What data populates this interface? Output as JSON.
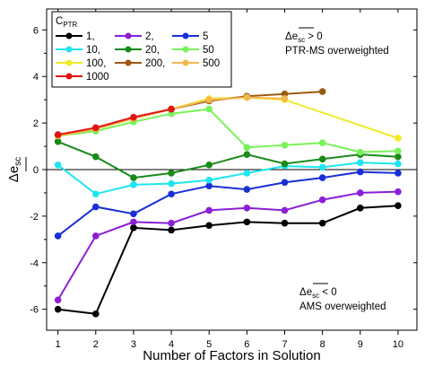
{
  "chart_data": {
    "type": "line",
    "xlabel": "Number of Factors in Solution",
    "ylabel": "Δ e_sc",
    "ylabel_symbol": "Δ",
    "ylabel_var": "e",
    "ylabel_sub": "sc",
    "xlim": [
      0.7,
      10.5
    ],
    "ylim": [
      -6.9,
      6.9
    ],
    "xticks": [
      1,
      2,
      3,
      4,
      5,
      6,
      7,
      8,
      9,
      10
    ],
    "yticks": [
      -6,
      -4,
      -2,
      0,
      2,
      4,
      6
    ],
    "zero_line": true,
    "legend": {
      "title": "C",
      "title_sub": "PTR",
      "placement": "top-left"
    },
    "series": [
      {
        "name": "1,",
        "color": "#000000",
        "x": [
          1,
          2,
          3,
          4,
          5,
          6,
          7,
          8,
          9,
          10
        ],
        "y": [
          -6.0,
          -6.2,
          -2.5,
          -2.6,
          -2.4,
          -2.25,
          -2.3,
          -2.3,
          -1.65,
          -1.55
        ]
      },
      {
        "name": "2,",
        "color": "#8a1fd6",
        "x": [
          1,
          2,
          3,
          4,
          5,
          6,
          7,
          8,
          9,
          10
        ],
        "y": [
          -5.6,
          -2.85,
          -2.25,
          -2.3,
          -1.75,
          -1.65,
          -1.75,
          -1.3,
          -1.0,
          -0.95
        ]
      },
      {
        "name": "5",
        "color": "#1a2fd6",
        "x": [
          1,
          2,
          3,
          4,
          5,
          6,
          7,
          8,
          9,
          10
        ],
        "y": [
          -2.85,
          -1.6,
          -1.9,
          -1.05,
          -0.7,
          -0.85,
          -0.55,
          -0.35,
          -0.1,
          -0.15
        ]
      },
      {
        "name": "10,",
        "color": "#1ee6f0",
        "x": [
          1,
          2,
          3,
          4,
          5,
          6,
          7,
          8,
          9,
          10
        ],
        "y": [
          0.2,
          -1.05,
          -0.65,
          -0.6,
          -0.45,
          -0.15,
          0.15,
          0.1,
          0.3,
          0.25
        ]
      },
      {
        "name": "20,",
        "color": "#1a8a1a",
        "x": [
          1,
          2,
          3,
          4,
          5,
          6,
          7,
          8,
          9,
          10
        ],
        "y": [
          1.2,
          0.55,
          -0.35,
          -0.15,
          0.2,
          0.65,
          0.25,
          0.45,
          0.65,
          0.55
        ]
      },
      {
        "name": "50",
        "color": "#7af25a",
        "x": [
          1,
          2,
          3,
          4,
          5,
          6,
          7,
          8,
          9,
          10
        ],
        "y": [
          1.45,
          1.65,
          2.05,
          2.4,
          2.6,
          0.95,
          1.05,
          1.15,
          0.75,
          0.8
        ]
      },
      {
        "name": "100,",
        "color": "#f2ea2a",
        "x": [
          1,
          2,
          3,
          4,
          5,
          6,
          7,
          8,
          9,
          10
        ],
        "y": [
          1.45,
          1.75,
          2.2,
          2.6,
          3.05,
          3.1,
          3.0,
          null,
          null,
          1.35
        ]
      },
      {
        "name": "200,",
        "color": "#9c5a14",
        "x": [
          1,
          2,
          3,
          4,
          5,
          6,
          7,
          8
        ],
        "y": [
          1.45,
          1.75,
          2.2,
          2.6,
          2.95,
          3.15,
          3.25,
          3.35
        ]
      },
      {
        "name": "500",
        "color": "#f4b84a",
        "x": [
          1,
          2,
          3,
          4,
          5,
          6,
          7
        ],
        "y": [
          1.45,
          1.75,
          2.2,
          2.6,
          3.0,
          3.1,
          3.05
        ]
      },
      {
        "name": "1000",
        "color": "#e01414",
        "x": [
          1,
          2,
          3,
          4
        ],
        "y": [
          1.5,
          1.8,
          2.25,
          2.6
        ]
      }
    ],
    "annotations": [
      {
        "symbol": "Δ",
        "var": "e",
        "sub": "sc",
        "rest": " > 0",
        "line2": "PTR-MS overweighted",
        "at": "top-right"
      },
      {
        "symbol": "Δ",
        "var": "e",
        "sub": "sc",
        "rest": " < 0",
        "line2": "AMS overweighted",
        "at": "bottom-right"
      }
    ]
  }
}
